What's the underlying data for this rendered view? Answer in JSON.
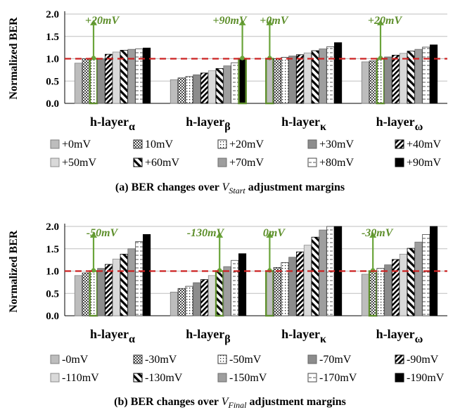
{
  "figure": {
    "ylabel": "Normalized BER",
    "group_base": "h-layer",
    "panels": [
      {
        "caption_prefix": "(a) BER changes over ",
        "caption_var": "V",
        "caption_sub": "Start",
        "caption_suffix": " adjustment margins"
      },
      {
        "caption_prefix": "(b) BER changes over ",
        "caption_var": "V",
        "caption_sub": "Final",
        "caption_suffix": " adjustment margins"
      }
    ]
  },
  "chart_data": [
    {
      "type": "bar",
      "title": "(a) BER changes over VStart adjustment margins",
      "ylabel": "Normalized BER",
      "ylim": [
        0,
        2.0
      ],
      "yticks": [
        "0.0",
        "0.5",
        "1.0",
        "1.5",
        "2.0"
      ],
      "reference_line": 1.0,
      "categories": [
        "h-layerα",
        "h-layerβ",
        "h-layerκ",
        "h-layerω"
      ],
      "category_subscripts": [
        "α",
        "β",
        "κ",
        "ω"
      ],
      "series": [
        {
          "name": "+0mV",
          "values": [
            0.9,
            0.53,
            1.0,
            0.93
          ]
        },
        {
          "name": "10mV",
          "values": [
            1.0,
            0.57,
            1.0,
            0.95
          ]
        },
        {
          "name": "+20mV",
          "values": [
            1.0,
            0.6,
            1.03,
            1.0
          ]
        },
        {
          "name": "+30mV",
          "values": [
            1.0,
            0.64,
            1.06,
            1.04
          ]
        },
        {
          "name": "+40mV",
          "values": [
            1.1,
            0.68,
            1.09,
            1.08
          ]
        },
        {
          "name": "+50mV",
          "values": [
            1.15,
            0.73,
            1.13,
            1.12
          ]
        },
        {
          "name": "+60mV",
          "values": [
            1.19,
            0.78,
            1.18,
            1.17
          ]
        },
        {
          "name": "+70mV",
          "values": [
            1.21,
            0.84,
            1.22,
            1.21
          ]
        },
        {
          "name": "+80mV",
          "values": [
            1.22,
            0.91,
            1.27,
            1.26
          ]
        },
        {
          "name": "+90mV",
          "values": [
            1.24,
            1.0,
            1.36,
            1.31
          ]
        }
      ],
      "highlight_index": [
        2,
        9,
        0,
        2
      ],
      "annotations": [
        "+20mV",
        "+90mV",
        "+0mV",
        "+20mV"
      ]
    },
    {
      "type": "bar",
      "title": "(b) BER changes over VFinal adjustment margins",
      "ylabel": "Normalized BER",
      "ylim": [
        0,
        2.0
      ],
      "yticks": [
        "0.0",
        "0.5",
        "1.0",
        "1.5",
        "2.0"
      ],
      "reference_line": 1.0,
      "categories": [
        "h-layerα",
        "h-layerβ",
        "h-layerκ",
        "h-layerω"
      ],
      "category_subscripts": [
        "α",
        "β",
        "κ",
        "ω"
      ],
      "series": [
        {
          "name": "-0mV",
          "values": [
            0.9,
            0.53,
            1.0,
            0.93
          ]
        },
        {
          "name": "-30mV",
          "values": [
            0.96,
            0.61,
            1.08,
            1.0
          ]
        },
        {
          "name": "-50mV",
          "values": [
            1.0,
            0.66,
            1.19,
            1.06
          ]
        },
        {
          "name": "-70mV",
          "values": [
            1.06,
            0.74,
            1.31,
            1.14
          ]
        },
        {
          "name": "-90mV",
          "values": [
            1.15,
            0.81,
            1.43,
            1.26
          ]
        },
        {
          "name": "-110mV",
          "values": [
            1.27,
            0.9,
            1.58,
            1.38
          ]
        },
        {
          "name": "-130mV",
          "values": [
            1.38,
            1.0,
            1.76,
            1.51
          ]
        },
        {
          "name": "-150mV",
          "values": [
            1.5,
            1.1,
            1.92,
            1.65
          ]
        },
        {
          "name": "-170mV",
          "values": [
            1.66,
            1.24,
            2.0,
            1.82
          ]
        },
        {
          "name": "-190mV",
          "values": [
            1.82,
            1.39,
            2.0,
            2.0
          ]
        }
      ],
      "highlight_index": [
        2,
        6,
        0,
        1
      ],
      "annotations": [
        "-50mV",
        "-130mV",
        "0mV",
        "-30mV"
      ]
    }
  ],
  "colors": {
    "highlight_border": "#5e8f2c",
    "annotation_text": "#5e8f2c",
    "arrow": "#6aa43a",
    "reference_line": "#cc2222",
    "grid": "#bfbfbf",
    "axis": "#000000"
  }
}
